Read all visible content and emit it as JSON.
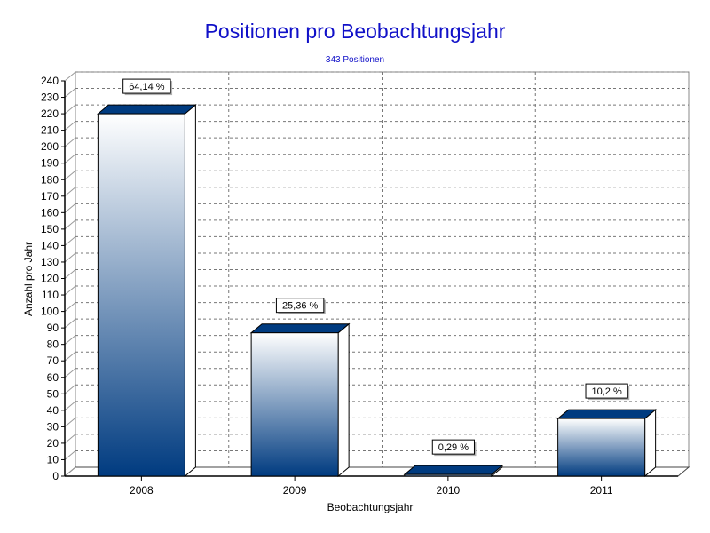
{
  "chart_data": {
    "type": "bar",
    "title": "Positionen pro Beobachtungsjahr",
    "subtitle": "343 Positionen",
    "xlabel": "Beobachtungsjahr",
    "ylabel": "Anzahl pro Jahr",
    "categories": [
      "2008",
      "2009",
      "2010",
      "2011"
    ],
    "values": [
      220,
      87,
      1,
      35
    ],
    "data_labels": [
      "64,14 %",
      "25,36 %",
      "0,29 %",
      "10,2 %"
    ],
    "ylim": [
      0,
      240
    ],
    "ytick_step": 10,
    "grid": true,
    "bar_color_top": "#ffffff",
    "bar_color_bottom": "#003b80"
  }
}
